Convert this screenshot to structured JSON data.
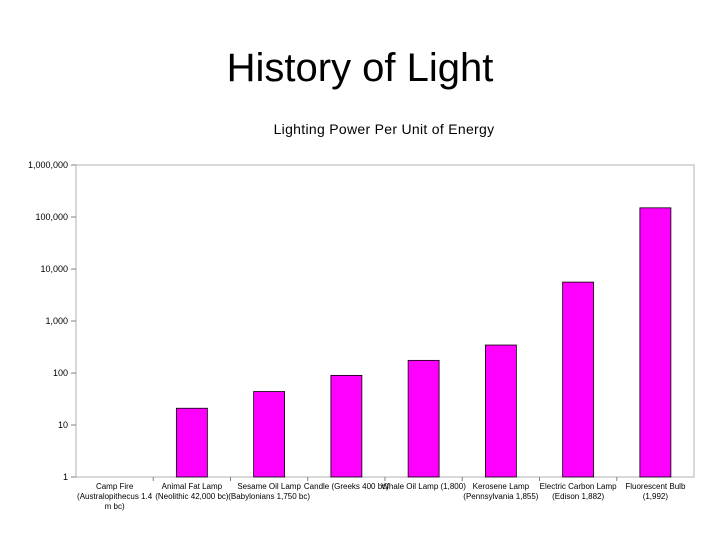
{
  "slide": {
    "title": "History of Light"
  },
  "chart_data": {
    "type": "bar",
    "title": "Lighting Power Per Unit of Energy",
    "xlabel": "",
    "ylabel": "",
    "scale": "log",
    "ylim": [
      1,
      1000000
    ],
    "yticks": [
      "1,000,000",
      "100,000",
      "10,000",
      "1,000",
      "100",
      "10",
      "1"
    ],
    "categories": [
      "Camp Fire (Australopithecus 1.4 m bc)",
      "Animal Fat Lamp (Neolithic 42,000 bc)",
      "Sesame Oil Lamp (Babylonians 1,750 bc)",
      "Candle (Greeks 400 bc)",
      "Whale Oil Lamp (1,800)",
      "Kerosene Lamp (Pennsylvania 1,855)",
      "Electric Carbon Lamp (Edison 1,882)",
      "Fluorescent Bulb (1,992)"
    ],
    "values": [
      1,
      21,
      44,
      90,
      175,
      345,
      5600,
      150000
    ],
    "bar_color": "#ff00ff",
    "grid": false
  }
}
